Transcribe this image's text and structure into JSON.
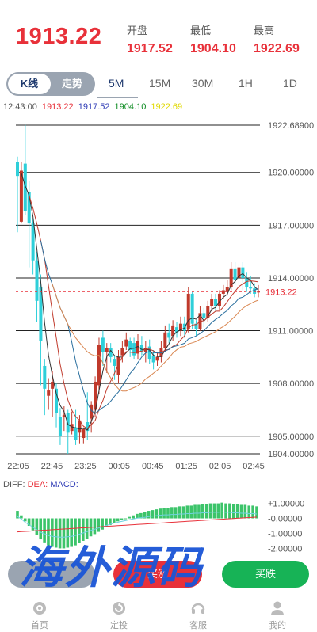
{
  "header": {
    "price": "1913.22",
    "open_label": "开盘",
    "open": "1917.52",
    "low_label": "最低",
    "low": "1904.10",
    "high_label": "最高",
    "high": "1922.69"
  },
  "tabs": {
    "kline": "K线",
    "trend": "走势",
    "periods": [
      "5M",
      "15M",
      "30M",
      "1H",
      "1D"
    ],
    "active_period": "5M"
  },
  "ohlc_bar": {
    "time": "12:43:00",
    "close": "1913.22",
    "open": "1917.52",
    "low": "1904.10",
    "high": "1922.69",
    "colors": {
      "close": "#e8313a",
      "open": "#2d3ab5",
      "low": "#0a8a1f",
      "high": "#e0d800"
    }
  },
  "chart_data": [
    {
      "type": "candlestick",
      "y_ticks": [
        "1922.68900",
        "1920.00000",
        "1917.00000",
        "1914.00000",
        "1911.00000",
        "1908.00000",
        "1905.00000",
        "1904.00000"
      ],
      "ylim": [
        1904.0,
        1922.689
      ],
      "x_ticks": [
        "22:05",
        "22:45",
        "23:25",
        "00:05",
        "00:45",
        "01:25",
        "02:05",
        "02:45"
      ],
      "current_price_label": "1913.22",
      "colors": {
        "up": "#c0392b",
        "down": "#2ecfd9",
        "ma_black": "#333333",
        "ma_red": "#c0392b",
        "ma_blue": "#2a6f9e",
        "ma_orange": "#d98650"
      },
      "candles": [
        [
          1920.6,
          1919.8,
          1920.9,
          1916.6
        ],
        [
          1917.2,
          1920.1,
          1920.6,
          1917.1
        ],
        [
          1920.5,
          1917.8,
          1922.7,
          1917.6
        ],
        [
          1918.9,
          1917.1,
          1919.5,
          1914.6
        ],
        [
          1917.1,
          1915.0,
          1917.4,
          1914.2
        ],
        [
          1915.0,
          1912.7,
          1915.5,
          1911.5
        ],
        [
          1913.5,
          1910.4,
          1914.2,
          1907.9
        ],
        [
          1909.0,
          1907.7,
          1909.4,
          1906.2
        ],
        [
          1907.3,
          1907.6,
          1908.3,
          1906.5
        ],
        [
          1907.7,
          1908.1,
          1908.7,
          1906.1
        ],
        [
          1907.7,
          1906.3,
          1908.0,
          1905.5
        ],
        [
          1906.1,
          1905.0,
          1906.6,
          1904.5
        ],
        [
          1906.1,
          1906.2,
          1906.7,
          1905.3
        ],
        [
          1906.3,
          1905.2,
          1906.5,
          1904.0
        ],
        [
          1905.3,
          1905.7,
          1906.4,
          1905.1
        ],
        [
          1905.5,
          1904.8,
          1906.5,
          1904.5
        ],
        [
          1905.2,
          1905.9,
          1906.2,
          1904.6
        ],
        [
          1904.9,
          1905.4,
          1905.5,
          1904.6
        ],
        [
          1905.8,
          1905.3,
          1907.5,
          1904.8
        ],
        [
          1906.0,
          1906.8,
          1907.0,
          1905.2
        ],
        [
          1906.5,
          1908.1,
          1908.4,
          1906.1
        ],
        [
          1907.9,
          1910.2,
          1910.6,
          1907.4
        ],
        [
          1910.6,
          1909.8,
          1911.0,
          1909.0
        ],
        [
          1909.8,
          1910.0,
          1910.3,
          1908.6
        ],
        [
          1910.0,
          1909.5,
          1910.3,
          1909.2
        ],
        [
          1909.4,
          1909.0,
          1909.6,
          1908.2
        ],
        [
          1908.5,
          1909.5,
          1909.9,
          1908.0
        ],
        [
          1909.6,
          1910.0,
          1910.4,
          1909.2
        ],
        [
          1910.1,
          1910.5,
          1910.9,
          1909.9
        ],
        [
          1910.4,
          1909.9,
          1910.6,
          1909.5
        ],
        [
          1910.3,
          1909.6,
          1910.6,
          1909.4
        ],
        [
          1909.7,
          1910.4,
          1910.8,
          1909.4
        ],
        [
          1910.2,
          1909.8,
          1910.7,
          1909.6
        ],
        [
          1909.8,
          1910.0,
          1910.4,
          1909.2
        ],
        [
          1910.1,
          1909.4,
          1910.5,
          1909.1
        ],
        [
          1909.6,
          1909.2,
          1909.9,
          1908.8
        ],
        [
          1909.3,
          1909.5,
          1909.8,
          1909.0
        ],
        [
          1909.5,
          1910.0,
          1910.4,
          1909.2
        ],
        [
          1910.0,
          1910.9,
          1911.3,
          1909.8
        ],
        [
          1910.9,
          1910.6,
          1911.4,
          1910.3
        ],
        [
          1910.7,
          1911.3,
          1911.6,
          1910.4
        ],
        [
          1911.2,
          1910.9,
          1911.5,
          1910.6
        ],
        [
          1911.0,
          1911.4,
          1911.8,
          1910.7
        ],
        [
          1911.4,
          1911.0,
          1911.8,
          1910.6
        ],
        [
          1911.1,
          1913.1,
          1913.5,
          1910.9
        ],
        [
          1913.1,
          1911.4,
          1913.2,
          1911.1
        ],
        [
          1911.4,
          1911.1,
          1911.6,
          1910.7
        ],
        [
          1911.1,
          1912.0,
          1912.4,
          1911.0
        ],
        [
          1912.0,
          1911.7,
          1912.3,
          1911.2
        ],
        [
          1911.7,
          1912.4,
          1912.7,
          1911.5
        ],
        [
          1912.4,
          1912.8,
          1913.1,
          1912.1
        ],
        [
          1912.8,
          1912.4,
          1913.1,
          1912.1
        ],
        [
          1912.4,
          1913.1,
          1913.3,
          1912.2
        ],
        [
          1913.1,
          1913.3,
          1913.6,
          1912.8
        ],
        [
          1913.2,
          1913.5,
          1913.9,
          1913.0
        ],
        [
          1913.5,
          1914.5,
          1914.9,
          1913.3
        ],
        [
          1914.5,
          1913.9,
          1914.9,
          1913.6
        ],
        [
          1914.0,
          1914.6,
          1914.8,
          1913.4
        ],
        [
          1914.6,
          1914.0,
          1914.9,
          1913.3
        ],
        [
          1914.0,
          1913.5,
          1914.3,
          1913.2
        ],
        [
          1913.5,
          1913.4,
          1914.1,
          1913.1
        ],
        [
          1913.4,
          1913.1,
          1913.7,
          1912.9
        ],
        [
          1913.2,
          1913.22,
          1913.6,
          1912.9
        ]
      ]
    },
    {
      "type": "bar",
      "legend": {
        "diff": "DIFF:",
        "dea": "DEA:",
        "macd": "MACD:"
      },
      "y_ticks": [
        "+1.00000",
        "-0.00000",
        "-1.00000",
        "-2.00000"
      ],
      "ylim": [
        -2.4,
        1.4
      ],
      "colors": {
        "pos": "#3cc46a",
        "neg": "#3cc46a",
        "diff": "#6fd2e0",
        "dea": "#e8313a"
      },
      "values": [
        0.5,
        0.2,
        -0.2,
        -0.5,
        -0.8,
        -1.1,
        -1.4,
        -1.6,
        -1.8,
        -1.9,
        -1.95,
        -2.0,
        -2.0,
        -1.95,
        -1.9,
        -1.8,
        -1.65,
        -1.5,
        -1.35,
        -1.2,
        -1.05,
        -0.9,
        -0.75,
        -0.6,
        -0.45,
        -0.3,
        -0.2,
        -0.1,
        0.0,
        0.1,
        0.2,
        0.3,
        0.35,
        0.4,
        0.5,
        0.55,
        0.6,
        0.65,
        0.7,
        0.7,
        0.75,
        0.75,
        0.8,
        0.8,
        0.85,
        0.85,
        0.9,
        0.9,
        0.95,
        0.95,
        1.0,
        1.0,
        1.0,
        1.05,
        1.0,
        1.0,
        0.95,
        0.95,
        0.9,
        0.9,
        0.85,
        0.85,
        0.8
      ]
    }
  ],
  "watermark": "海外源码",
  "buttons": {
    "left": "",
    "mid": "买涨",
    "right": "买跌"
  },
  "nav": [
    {
      "label": "首页",
      "icon": "home-icon"
    },
    {
      "label": "定投",
      "icon": "refresh-icon"
    },
    {
      "label": "客服",
      "icon": "headset-icon"
    },
    {
      "label": "我的",
      "icon": "user-icon"
    }
  ]
}
